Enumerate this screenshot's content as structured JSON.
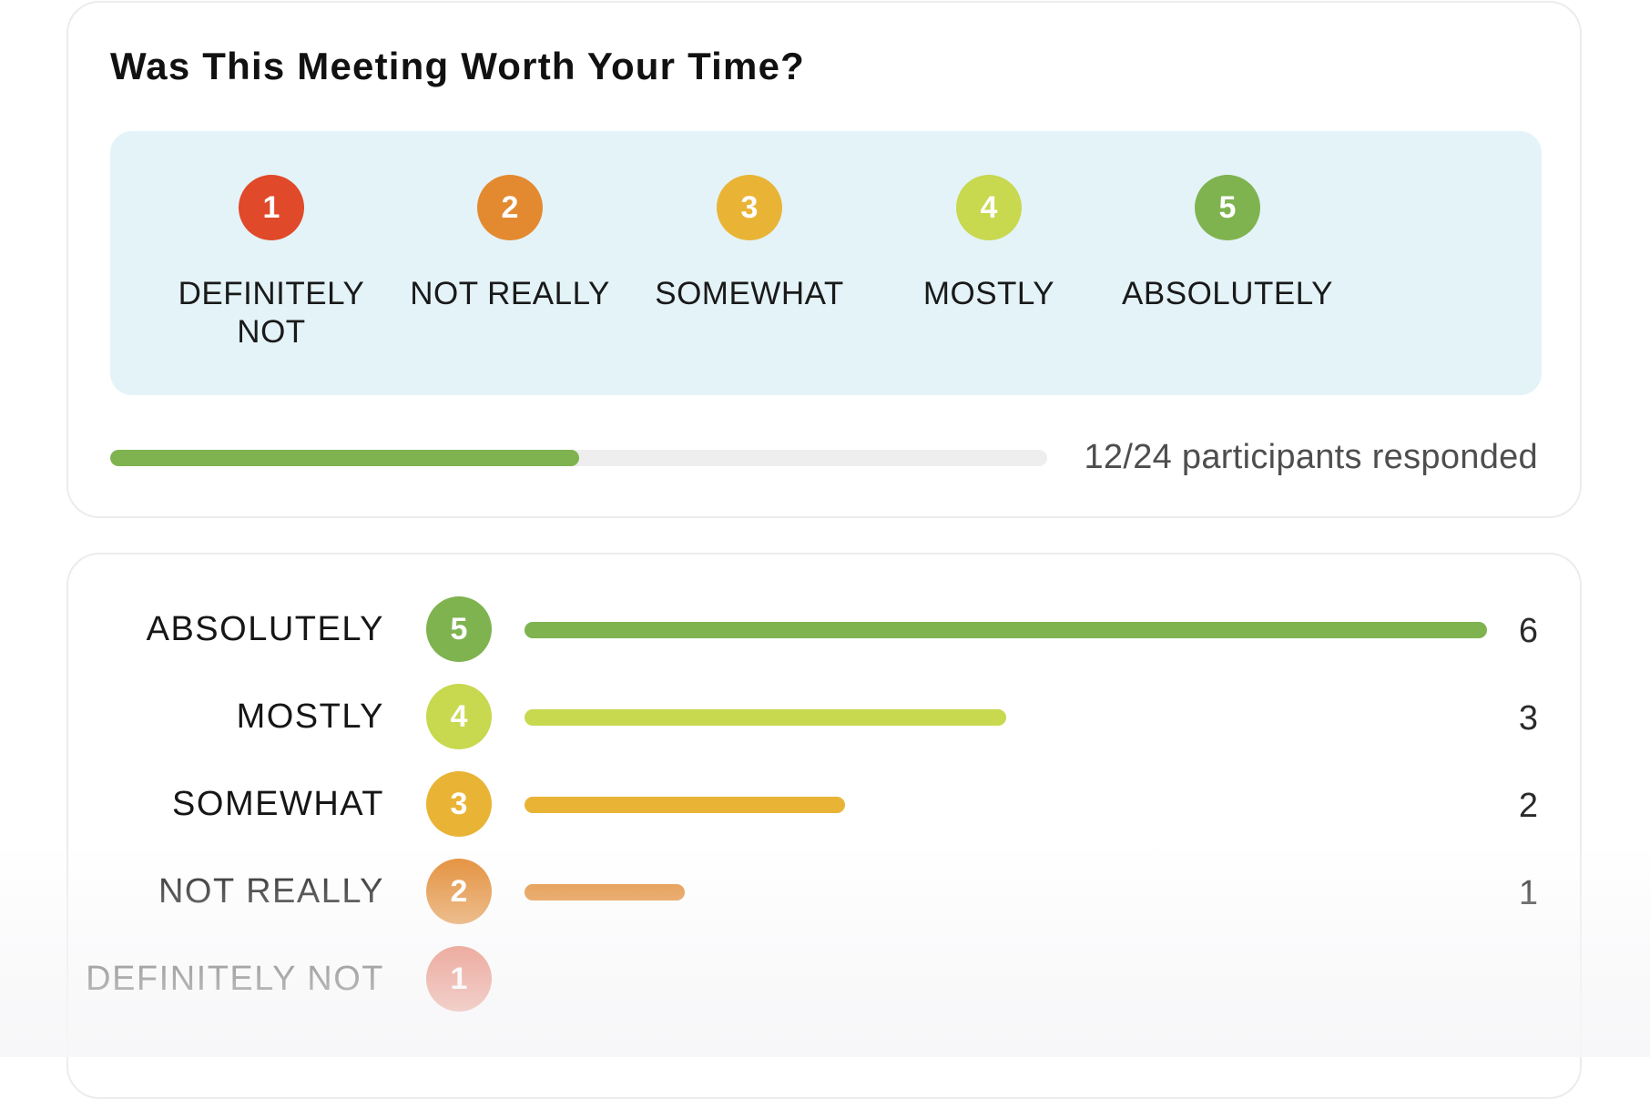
{
  "survey": {
    "title": "Was This Meeting Worth Your Time?",
    "options": [
      {
        "number": "1",
        "label": "DEFINITELY NOT",
        "color": "#e0492a"
      },
      {
        "number": "2",
        "label": "NOT REALLY",
        "color": "#e38a30"
      },
      {
        "number": "3",
        "label": "SOMEWHAT",
        "color": "#e9b436"
      },
      {
        "number": "4",
        "label": "MOSTLY",
        "color": "#c8d84f"
      },
      {
        "number": "5",
        "label": "ABSOLUTELY",
        "color": "#7fb34f"
      }
    ],
    "progress": {
      "fraction": 0.5,
      "text": "12/24 participants responded"
    }
  },
  "results": {
    "max_count": 6,
    "rows": [
      {
        "label": "ABSOLUTELY",
        "number": "5",
        "count": 6,
        "count_text": "6",
        "color": "#7fb34f"
      },
      {
        "label": "MOSTLY",
        "number": "4",
        "count": 3,
        "count_text": "3",
        "color": "#c8d84f"
      },
      {
        "label": "SOMEWHAT",
        "number": "3",
        "count": 2,
        "count_text": "2",
        "color": "#e9b436"
      },
      {
        "label": "NOT REALLY",
        "number": "2",
        "count": 1,
        "count_text": "1",
        "color": "#e38a30"
      },
      {
        "label": "DEFINITELY NOT",
        "number": "1",
        "count": 0,
        "count_text": "",
        "color": "#e0492a"
      }
    ]
  }
}
